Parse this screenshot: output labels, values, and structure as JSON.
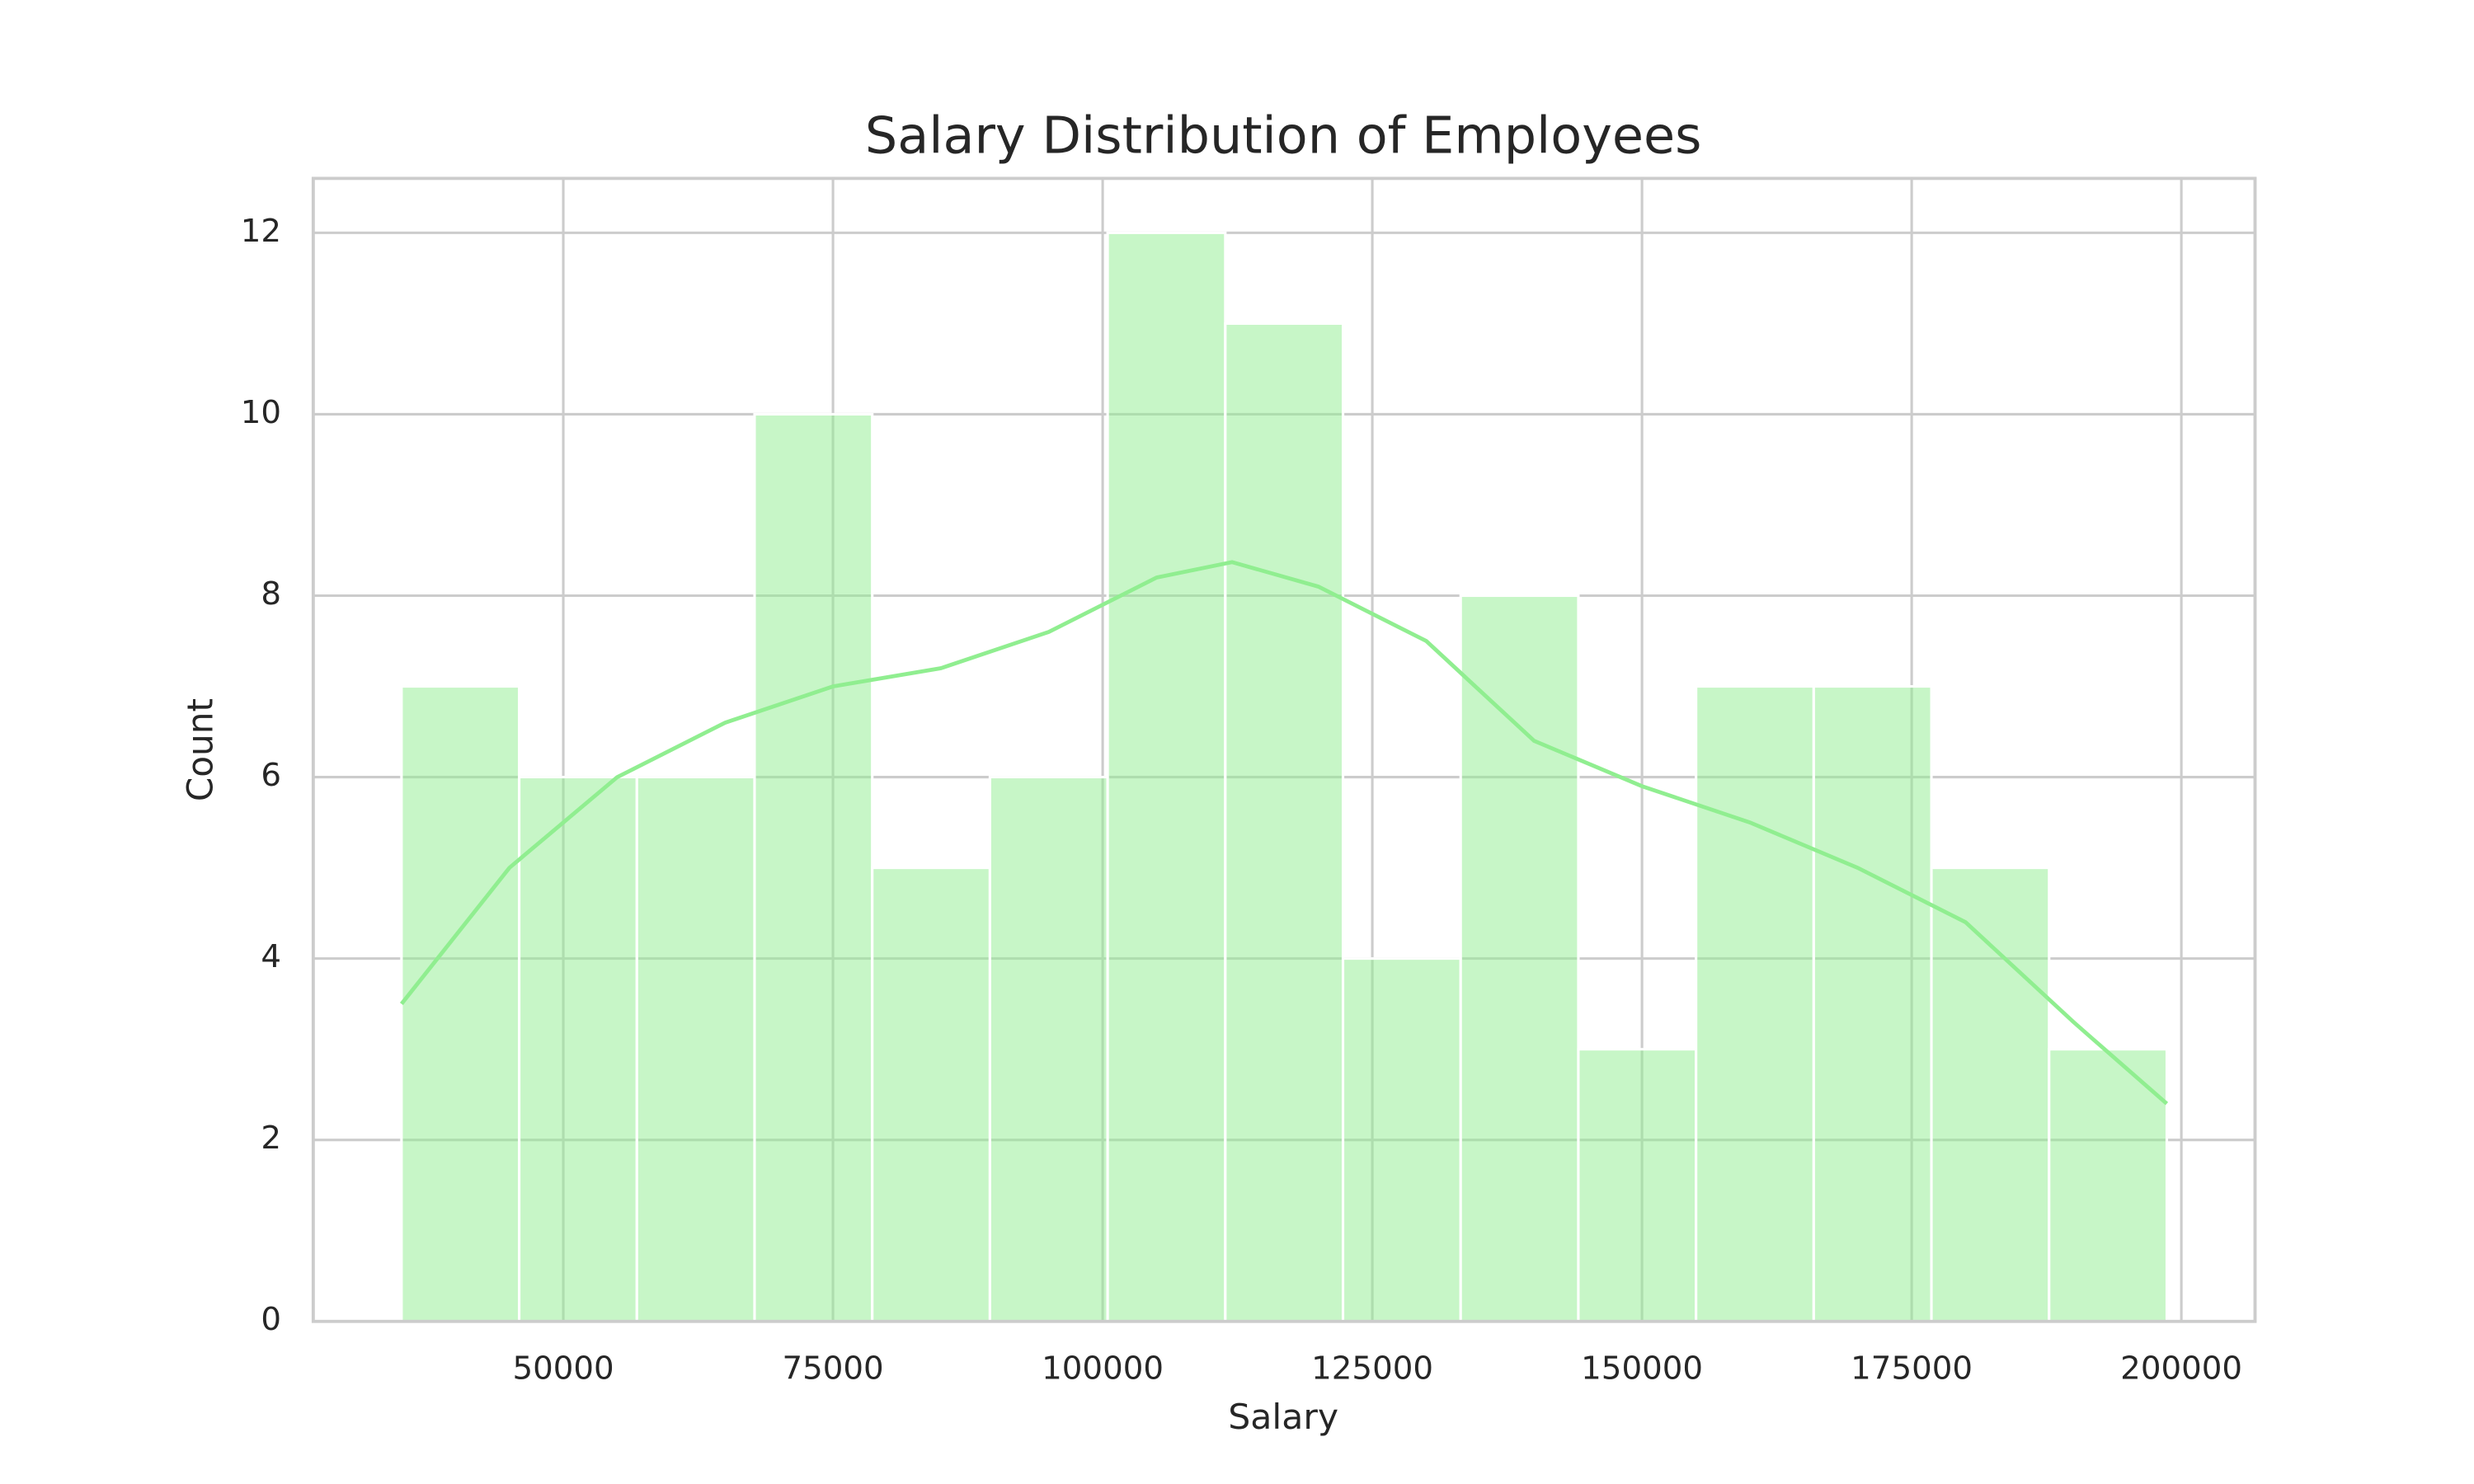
{
  "chart_data": {
    "type": "histogram",
    "title": "Salary Distribution of Employees",
    "x_label": "Salary",
    "y_label": "Count",
    "bins": [
      35000,
      45910,
      56820,
      67730,
      78640,
      89550,
      100460,
      111370,
      122280,
      133190,
      144100,
      155010,
      165920,
      176830,
      187740,
      198650
    ],
    "values": [
      7,
      6,
      6,
      10,
      5,
      6,
      12,
      11,
      4,
      8,
      3,
      7,
      7,
      5,
      3
    ],
    "color": "#90ee90",
    "kde": {
      "x": [
        35000,
        45000,
        55000,
        65000,
        75000,
        85000,
        95000,
        105000,
        112000,
        120000,
        130000,
        140000,
        150000,
        160000,
        170000,
        180000,
        190000,
        198650
      ],
      "y": [
        3.5,
        5.0,
        6.0,
        6.6,
        7.0,
        7.2,
        7.6,
        8.2,
        8.37,
        8.1,
        7.5,
        6.4,
        5.9,
        5.5,
        5.0,
        4.4,
        3.3,
        2.4
      ],
      "color": "#90ee90"
    },
    "xlim": [
      26818,
      206832
    ],
    "xticks": [
      50000,
      75000,
      100000,
      125000,
      150000,
      175000,
      200000
    ],
    "ylim": [
      0,
      12.6
    ],
    "yticks": [
      0,
      2,
      4,
      6,
      8,
      10,
      12
    ],
    "grid": true
  }
}
